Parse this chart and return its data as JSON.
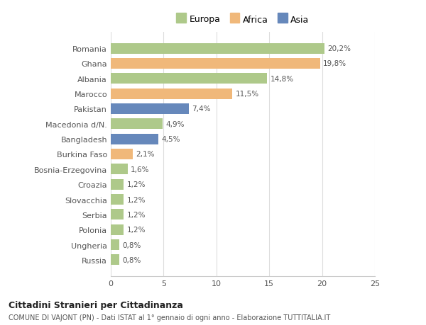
{
  "categories": [
    "Romania",
    "Ghana",
    "Albania",
    "Marocco",
    "Pakistan",
    "Macedonia d/N.",
    "Bangladesh",
    "Burkina Faso",
    "Bosnia-Erzegovina",
    "Croazia",
    "Slovacchia",
    "Serbia",
    "Polonia",
    "Ungheria",
    "Russia"
  ],
  "values": [
    20.2,
    19.8,
    14.8,
    11.5,
    7.4,
    4.9,
    4.5,
    2.1,
    1.6,
    1.2,
    1.2,
    1.2,
    1.2,
    0.8,
    0.8
  ],
  "labels": [
    "20,2%",
    "19,8%",
    "14,8%",
    "11,5%",
    "7,4%",
    "4,9%",
    "4,5%",
    "2,1%",
    "1,6%",
    "1,2%",
    "1,2%",
    "1,2%",
    "1,2%",
    "0,8%",
    "0,8%"
  ],
  "colors": [
    "#aec98a",
    "#f0b87a",
    "#aec98a",
    "#f0b87a",
    "#6688bb",
    "#aec98a",
    "#6688bb",
    "#f0b87a",
    "#aec98a",
    "#aec98a",
    "#aec98a",
    "#aec98a",
    "#aec98a",
    "#aec98a",
    "#aec98a"
  ],
  "legend": [
    {
      "label": "Europa",
      "color": "#aec98a"
    },
    {
      "label": "Africa",
      "color": "#f0b87a"
    },
    {
      "label": "Asia",
      "color": "#6688bb"
    }
  ],
  "xlim": [
    0,
    25
  ],
  "xticks": [
    0,
    5,
    10,
    15,
    20,
    25
  ],
  "title": "Cittadini Stranieri per Cittadinanza",
  "subtitle": "COMUNE DI VAJONT (PN) - Dati ISTAT al 1° gennaio di ogni anno - Elaborazione TUTTITALIA.IT",
  "bg_color": "#ffffff",
  "plot_bg_color": "#ffffff"
}
